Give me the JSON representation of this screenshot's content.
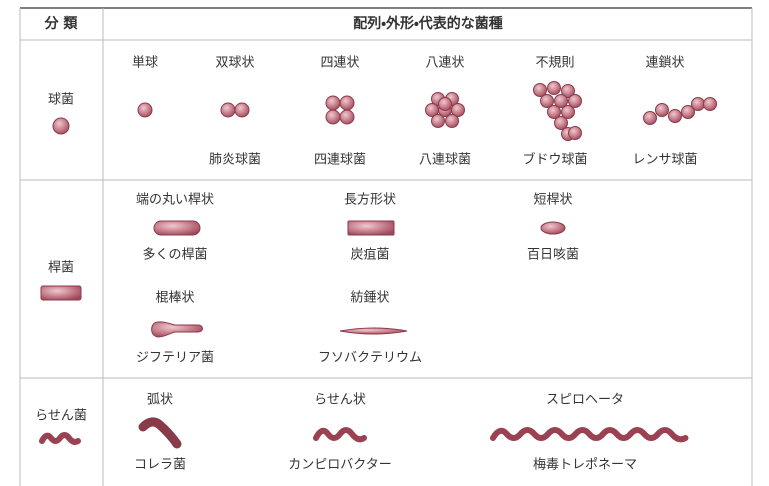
{
  "header": {
    "category": "分 類",
    "description": "配列・外形・代表的な菌種"
  },
  "groups": [
    {
      "label": "球菌",
      "items": [
        {
          "shape": "単球"
        },
        {
          "shape": "双球状",
          "example": "肺炎球菌"
        },
        {
          "shape": "四連状",
          "example": "四連球菌"
        },
        {
          "shape": "八連状",
          "example": "八連球菌"
        },
        {
          "shape": "不規則",
          "example": "ブドウ球菌"
        },
        {
          "shape": "連鎖状",
          "example": "レンサ球菌"
        }
      ]
    },
    {
      "label": "桿菌",
      "items": [
        {
          "shape": "端の丸い桿状",
          "example": "多くの桿菌"
        },
        {
          "shape": "長方形状",
          "example": "炭疽菌"
        },
        {
          "shape": "短桿状",
          "example": "百日咳菌"
        },
        {
          "shape": "棍棒状",
          "example": "ジフテリア菌"
        },
        {
          "shape": "紡錘状",
          "example": "フソバクテリウム"
        }
      ]
    },
    {
      "label": "らせん菌",
      "items": [
        {
          "shape": "弧状",
          "example": "コレラ菌"
        },
        {
          "shape": "らせん状",
          "example": "カンピロバクター"
        },
        {
          "shape": "スピロヘータ",
          "example": "梅毒トレポネーマ"
        }
      ]
    }
  ]
}
